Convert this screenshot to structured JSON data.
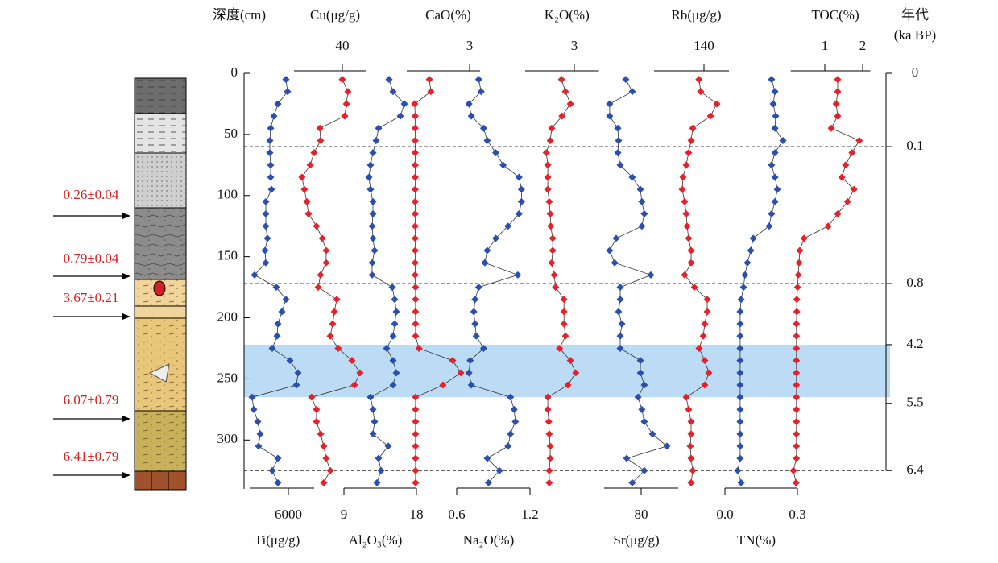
{
  "chart_data": {
    "type": "line",
    "ylabel": "深度(cm)",
    "ylim": [
      0,
      340
    ],
    "yticks": [
      0,
      50,
      100,
      150,
      200,
      250,
      300
    ],
    "y_inverted": true,
    "depths": [
      5,
      15,
      25,
      35,
      45,
      55,
      65,
      75,
      85,
      95,
      105,
      115,
      125,
      135,
      145,
      155,
      165,
      175,
      185,
      195,
      205,
      215,
      225,
      235,
      245,
      255,
      265,
      275,
      285,
      295,
      305,
      315,
      325,
      335
    ],
    "panels": [
      {
        "xlabel": "Ti(μg/g)",
        "axis_position": "bottom",
        "color": "#2a4fb0",
        "xlim": [
          4800,
          6800
        ],
        "xticks": [
          6000
        ],
        "values": [
          5925,
          5975,
          5675,
          5550,
          5450,
          5425,
          5425,
          5450,
          5450,
          5475,
          5300,
          5300,
          5300,
          5350,
          5275,
          5300,
          4950,
          5625,
          5925,
          5800,
          5675,
          5650,
          5500,
          6050,
          6300,
          6250,
          4875,
          4925,
          5050,
          5125,
          5075,
          5675,
          5500,
          5675
        ]
      },
      {
        "xlabel": "Cu(μg/g)",
        "axis_position": "top",
        "color": "#e8202a",
        "xlim": [
          20,
          50
        ],
        "xticks": [
          40
        ],
        "values": [
          40,
          42.3,
          41.7,
          41,
          30.7,
          31,
          28.3,
          26.7,
          23.3,
          24.3,
          25.3,
          26,
          29.3,
          31.7,
          33.3,
          33.3,
          31,
          30,
          37.7,
          36.7,
          36,
          35,
          38.3,
          44,
          47.3,
          45,
          27.3,
          29.3,
          29.3,
          31,
          32.3,
          33.3,
          35,
          32.3
        ]
      },
      {
        "xlabel": "Al₂O₃(%)",
        "axis_position": "bottom",
        "color": "#2a4fb0",
        "xlim": [
          9,
          18
        ],
        "xticks": [
          9,
          18
        ],
        "values": [
          14.6,
          15.1,
          16.5,
          16,
          13.3,
          13,
          12.6,
          12.3,
          12.1,
          12.3,
          12.6,
          12.6,
          12.5,
          12.6,
          12.8,
          12.5,
          12.5,
          15,
          15.3,
          15.5,
          15.3,
          15.1,
          14.3,
          15.1,
          15.5,
          15.1,
          12.3,
          12.6,
          12.8,
          12.6,
          14.5,
          13.3,
          13.6,
          13.1
        ]
      },
      {
        "xlabel": "CaO(%)",
        "axis_position": "top",
        "color": "#e8202a",
        "xlim": [
          0,
          3.5
        ],
        "xticks": [
          3
        ],
        "values": [
          1.08,
          1.15,
          0.38,
          0.4,
          0.4,
          0.4,
          0.4,
          0.4,
          0.4,
          0.4,
          0.4,
          0.4,
          0.4,
          0.4,
          0.4,
          0.4,
          0.4,
          0.42,
          0.42,
          0.42,
          0.42,
          0.42,
          0.58,
          2.19,
          2.58,
          1.73,
          0.42,
          0.42,
          0.42,
          0.42,
          0.42,
          0.42,
          0.42,
          0.42
        ]
      },
      {
        "xlabel": "Na₂O(%)",
        "axis_position": "bottom",
        "color": "#2a4fb0",
        "xlim": [
          0.6,
          1.2
        ],
        "xticks": [
          0.6,
          1.2
        ],
        "values": [
          0.78,
          0.8,
          0.7,
          0.72,
          0.82,
          0.85,
          0.92,
          0.98,
          1.11,
          1.13,
          1.13,
          1.11,
          1.02,
          0.92,
          0.85,
          0.83,
          1.1,
          0.78,
          0.75,
          0.74,
          0.75,
          0.76,
          0.82,
          0.71,
          0.7,
          0.72,
          1.04,
          1.07,
          1.08,
          1.04,
          1.02,
          0.85,
          0.95,
          0.86
        ]
      },
      {
        "xlabel": "K₂O(%)",
        "axis_position": "top",
        "color": "#e8202a",
        "xlim": [
          2,
          3.5
        ],
        "xticks": [
          3
        ],
        "values": [
          2.74,
          2.82,
          2.92,
          2.75,
          2.54,
          2.51,
          2.43,
          2.46,
          2.46,
          2.46,
          2.49,
          2.51,
          2.52,
          2.56,
          2.56,
          2.54,
          2.59,
          2.62,
          2.79,
          2.79,
          2.79,
          2.82,
          2.7,
          2.92,
          3.03,
          2.87,
          2.46,
          2.46,
          2.48,
          2.49,
          2.51,
          2.51,
          2.49,
          2.49
        ]
      },
      {
        "xlabel": "Sr(μg/g)",
        "axis_position": "bottom",
        "color": "#2a4fb0",
        "xlim": [
          60,
          100
        ],
        "xticks": [
          80
        ],
        "values": [
          71.7,
          75.2,
          63,
          63,
          67.4,
          67.8,
          67.4,
          68.7,
          75.2,
          79.6,
          80.4,
          81.7,
          80.4,
          66.5,
          63,
          65.7,
          85.2,
          68.7,
          68.7,
          67.8,
          69.6,
          68.7,
          68.7,
          79.6,
          79.6,
          81.7,
          78.3,
          80.4,
          81.7,
          86.1,
          93.9,
          72.2,
          81.7,
          75.2
        ]
      },
      {
        "xlabel": "Rb(μg/g)",
        "axis_position": "top",
        "color": "#e8202a",
        "xlim": [
          100,
          160
        ],
        "xticks": [
          140
        ],
        "values": [
          136,
          137.4,
          150.3,
          145.2,
          131,
          129.7,
          127.7,
          125.8,
          123.2,
          122.6,
          124.5,
          125.8,
          126.5,
          127.7,
          129.7,
          129.7,
          124.5,
          132.3,
          142.6,
          142.6,
          140.6,
          139.4,
          136.1,
          140.6,
          143.9,
          140.6,
          125.8,
          127.7,
          129.7,
          129.7,
          129,
          129.7,
          131,
          129.7
        ]
      },
      {
        "xlabel": "TN(%)",
        "axis_position": "bottom",
        "color": "#2a4fb0",
        "xlim": [
          0,
          0.3
        ],
        "xticks": [
          {
            "value": 0,
            "label": "0.0"
          },
          0.3
        ],
        "values": [
          0.193,
          0.207,
          0.2,
          0.21,
          0.207,
          0.24,
          0.207,
          0.193,
          0.207,
          0.217,
          0.207,
          0.193,
          0.183,
          0.117,
          0.107,
          0.093,
          0.083,
          0.077,
          0.067,
          0.063,
          0.063,
          0.063,
          0.063,
          0.063,
          0.063,
          0.063,
          0.063,
          0.063,
          0.063,
          0.063,
          0.063,
          0.063,
          0.053,
          0.067
        ]
      },
      {
        "xlabel": "TOC(%)",
        "axis_position": "top",
        "color": "#e8202a",
        "xlim": [
          0.1,
          2.2
        ],
        "xticks": [
          1,
          2
        ],
        "values": [
          1.34,
          1.34,
          1.3,
          1.34,
          1.17,
          1.91,
          1.72,
          1.55,
          1.45,
          1.77,
          1.6,
          1.34,
          1.09,
          0.45,
          0.34,
          0.32,
          0.3,
          0.28,
          0.26,
          0.26,
          0.25,
          0.25,
          0.25,
          0.25,
          0.25,
          0.25,
          0.25,
          0.25,
          0.25,
          0.25,
          0.25,
          0.25,
          0.17,
          0.24
        ]
      }
    ],
    "age_axis": {
      "label": [
        "年代",
        "(ka BP)"
      ],
      "ticks": [
        {
          "depth": 0,
          "age": 0
        },
        {
          "depth": 60,
          "age": 0.1
        },
        {
          "depth": 172,
          "age": 0.8
        },
        {
          "depth": 222,
          "age": 4.2
        },
        {
          "depth": 270,
          "age": 5.5
        },
        {
          "depth": 325,
          "age": 6.4
        }
      ]
    },
    "dashed_lines": [
      60,
      172,
      325
    ],
    "highlight_band": [
      222,
      265
    ],
    "dates": [
      "0.26±0.04",
      "0.79±0.04",
      "3.67±0.21",
      "6.07±0.79",
      "6.41±0.79"
    ]
  }
}
